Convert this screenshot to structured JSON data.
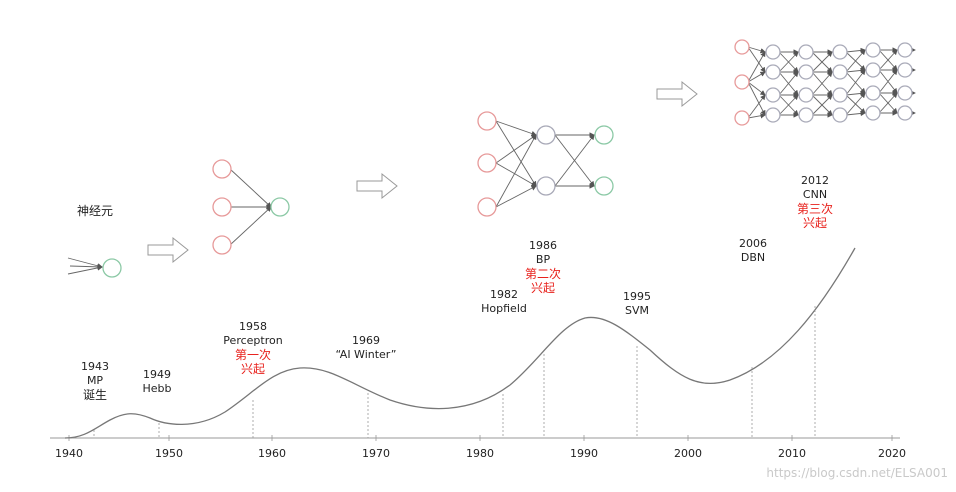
{
  "neuron_label": "神经元",
  "axis": {
    "years": [
      "1940",
      "1950",
      "1960",
      "1970",
      "1980",
      "1990",
      "2000",
      "2010",
      "2020"
    ]
  },
  "events": [
    {
      "year": "1943",
      "name": "MP",
      "note": "诞生",
      "note_color": "#222222"
    },
    {
      "year": "1949",
      "name": "Hebb",
      "note": "",
      "note_color": ""
    },
    {
      "year": "1958",
      "name": "Perceptron",
      "note": "第一次\n兴起",
      "note_color": "#e8211c"
    },
    {
      "year": "1969",
      "name": "“AI Winter”",
      "note": "",
      "note_color": ""
    },
    {
      "year": "1982",
      "name": "Hopfield",
      "note": "",
      "note_color": ""
    },
    {
      "year": "1986",
      "name": "BP",
      "note": "第二次\n兴起",
      "note_color": "#e8211c"
    },
    {
      "year": "1995",
      "name": "SVM",
      "note": "",
      "note_color": ""
    },
    {
      "year": "2006",
      "name": "DBN",
      "note": "",
      "note_color": ""
    },
    {
      "year": "2012",
      "name": "CNN",
      "note": "第三次\n兴起",
      "note_color": "#e8211c"
    }
  ],
  "watermark": "https://blog.csdn.net/ELSA001",
  "colors": {
    "input_node": "#e79a9a",
    "hidden_node": "#a9aab8",
    "output_node": "#8cc9a6",
    "highlight_text": "#e8211c",
    "curve": "#777777"
  }
}
